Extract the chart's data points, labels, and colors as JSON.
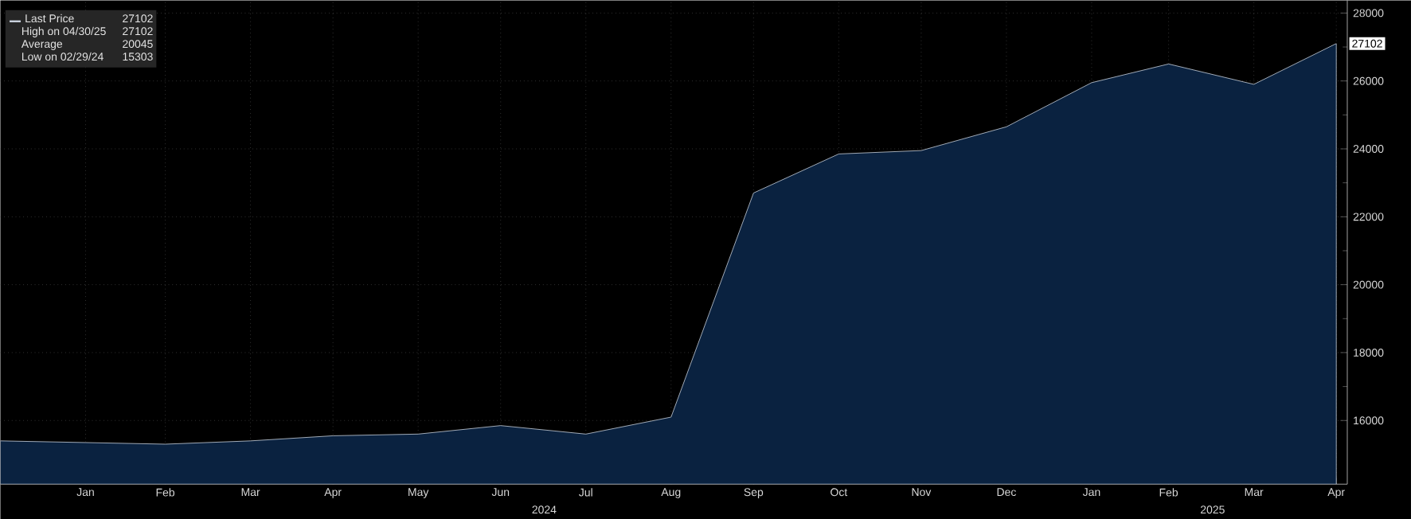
{
  "chart_data": {
    "type": "area",
    "x": [
      "2023-12-31",
      "2024-01-31",
      "2024-02-29",
      "2024-03-31",
      "2024-04-30",
      "2024-05-31",
      "2024-06-30",
      "2024-07-31",
      "2024-08-31",
      "2024-09-30",
      "2024-10-31",
      "2024-11-30",
      "2024-12-31",
      "2025-01-31",
      "2025-02-28",
      "2025-03-31",
      "2025-04-30"
    ],
    "series": [
      {
        "name": "Last Price",
        "color": "#c8d0dc",
        "values": [
          15400,
          15350,
          15303,
          15400,
          15550,
          15600,
          15850,
          15600,
          16100,
          22700,
          23850,
          23950,
          24650,
          25950,
          26500,
          25900,
          27102
        ]
      }
    ],
    "xlim": [
      "2023-12-31",
      "2025-05-04"
    ],
    "xticks": [
      {
        "value": "2024-01-31",
        "label": "Jan"
      },
      {
        "value": "2024-02-29",
        "label": "Feb"
      },
      {
        "value": "2024-03-31",
        "label": "Mar"
      },
      {
        "value": "2024-04-30",
        "label": "Apr"
      },
      {
        "value": "2024-05-31",
        "label": "May"
      },
      {
        "value": "2024-06-30",
        "label": "Jun"
      },
      {
        "value": "2024-07-31",
        "label": "Jul"
      },
      {
        "value": "2024-08-31",
        "label": "Aug"
      },
      {
        "value": "2024-09-30",
        "label": "Sep"
      },
      {
        "value": "2024-10-31",
        "label": "Oct"
      },
      {
        "value": "2024-11-30",
        "label": "Nov"
      },
      {
        "value": "2024-12-31",
        "label": "Dec"
      },
      {
        "value": "2025-01-31",
        "label": "Jan"
      },
      {
        "value": "2025-02-28",
        "label": "Feb"
      },
      {
        "value": "2025-03-31",
        "label": "Mar"
      },
      {
        "value": "2025-04-30",
        "label": "Apr"
      }
    ],
    "ylim": [
      14125,
      28375
    ],
    "yticks": [
      16000,
      18000,
      20000,
      22000,
      24000,
      26000,
      28000
    ],
    "grid": true,
    "legend": "top left",
    "line_style": "solid",
    "annotations": [
      "27102",
      "High on 04/30/25",
      "27102",
      "Average",
      "20045",
      "Low on 02/29/24",
      "15303",
      {
        "text": "27102",
        "x": "2025-04-30",
        "y": 27102
      },
      "2024",
      "2025"
    ]
  }
}
